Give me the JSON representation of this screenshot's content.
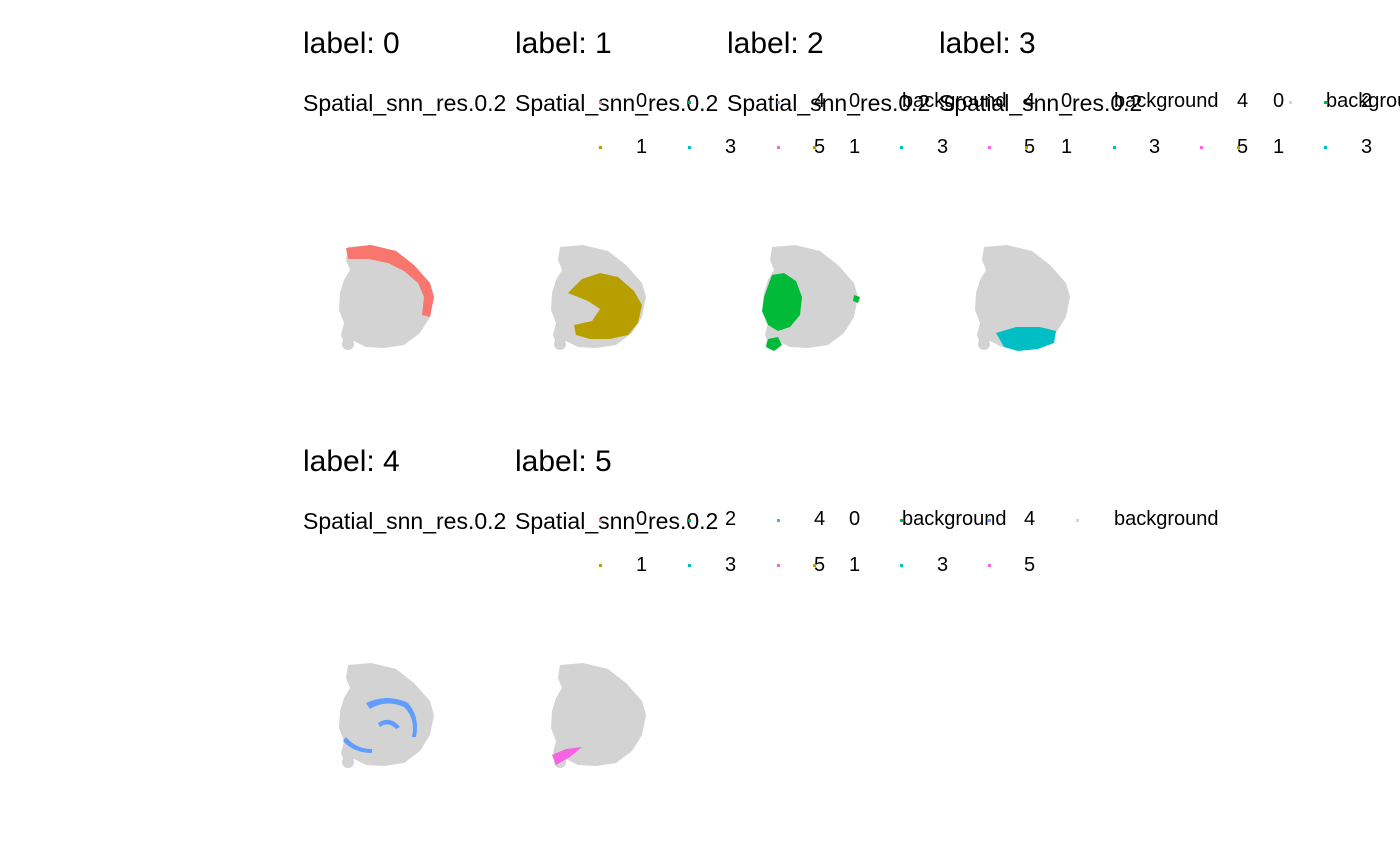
{
  "figure": {
    "legend_title": "Spatial_snn_res.0.2",
    "background_color_hex": "#d3d3d3",
    "legend_entries": [
      "0",
      "1",
      "2",
      "3",
      "4",
      "5",
      "background"
    ]
  },
  "chart_data": {
    "type": "scatter",
    "subtype": "spatial feature plot, faceted by cluster label",
    "legend": {
      "title": "Spatial_snn_res.0.2",
      "placement": "top",
      "entries": [
        {
          "label": "0",
          "color": "#F8766D"
        },
        {
          "label": "1",
          "color": "#B79F00"
        },
        {
          "label": "2",
          "color": "#00BA38"
        },
        {
          "label": "3",
          "color": "#00BFC4"
        },
        {
          "label": "4",
          "color": "#619CFF"
        },
        {
          "label": "5",
          "color": "#F564E3"
        },
        {
          "label": "background",
          "color": "#d3d3d3"
        }
      ]
    },
    "facets": [
      {
        "title": "label: 0",
        "highlight": "0",
        "color": "#F8766D",
        "region": "outer cortical arc along top and right edge"
      },
      {
        "title": "label: 1",
        "highlight": "1",
        "color": "#B79F00",
        "region": "central body with scattered spots at rim"
      },
      {
        "title": "label: 2",
        "highlight": "2",
        "color": "#00BA38",
        "region": "left lobe and small bottom-left patch"
      },
      {
        "title": "label: 3",
        "highlight": "3",
        "color": "#00BFC4",
        "region": "bottom band with sparse spots"
      },
      {
        "title": "label: 4",
        "highlight": "4",
        "color": "#619CFF",
        "region": "thin curved arcs inside tissue"
      },
      {
        "title": "label: 5",
        "highlight": "5",
        "color": "#F564E3",
        "region": "small wedge at bottom left"
      }
    ],
    "grid": false,
    "axes": "none"
  }
}
